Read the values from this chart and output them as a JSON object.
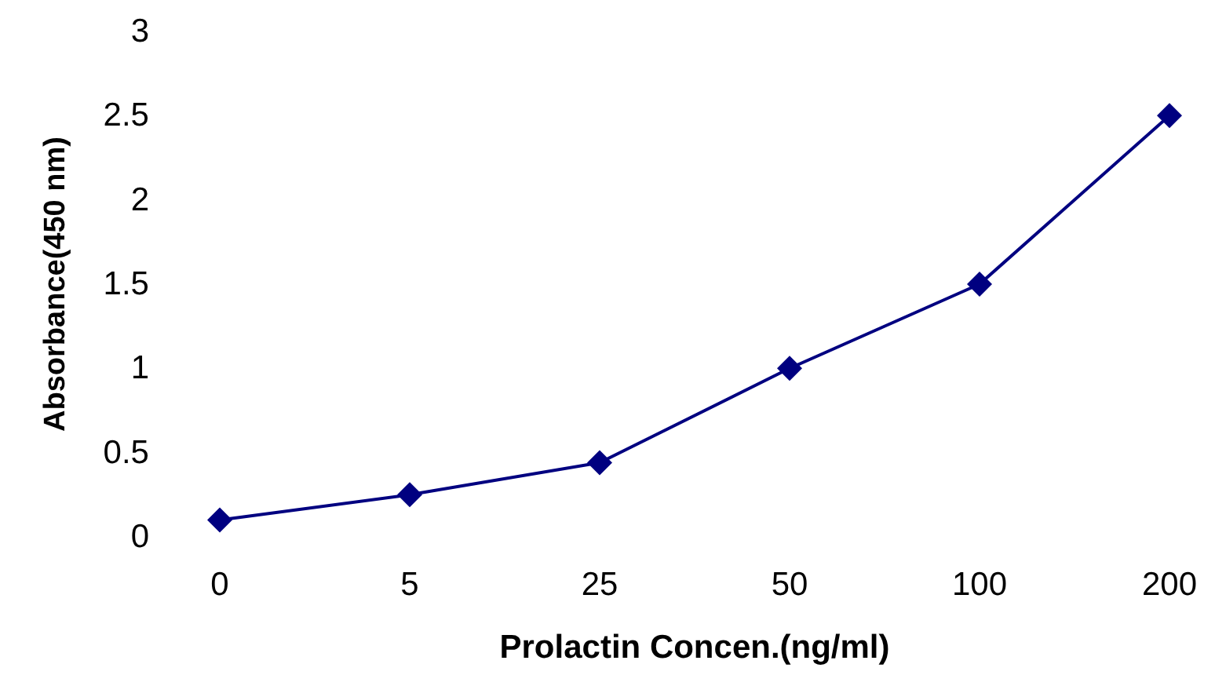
{
  "chart_data": {
    "type": "line",
    "xlabel": "Prolactin Concen.(ng/ml)",
    "ylabel": "Absorbance(450 nm)",
    "categories": [
      "0",
      "5",
      "25",
      "50",
      "100",
      "200"
    ],
    "series": [
      {
        "color": "#000080",
        "values": [
          0.1,
          0.25,
          0.44,
          1.0,
          1.5,
          2.5
        ]
      }
    ],
    "ylim": [
      0,
      3
    ],
    "yticks": [
      0,
      0.5,
      1,
      1.5,
      2,
      2.5,
      3
    ],
    "grid": false,
    "marker": "diamond",
    "line_style": "solid"
  }
}
